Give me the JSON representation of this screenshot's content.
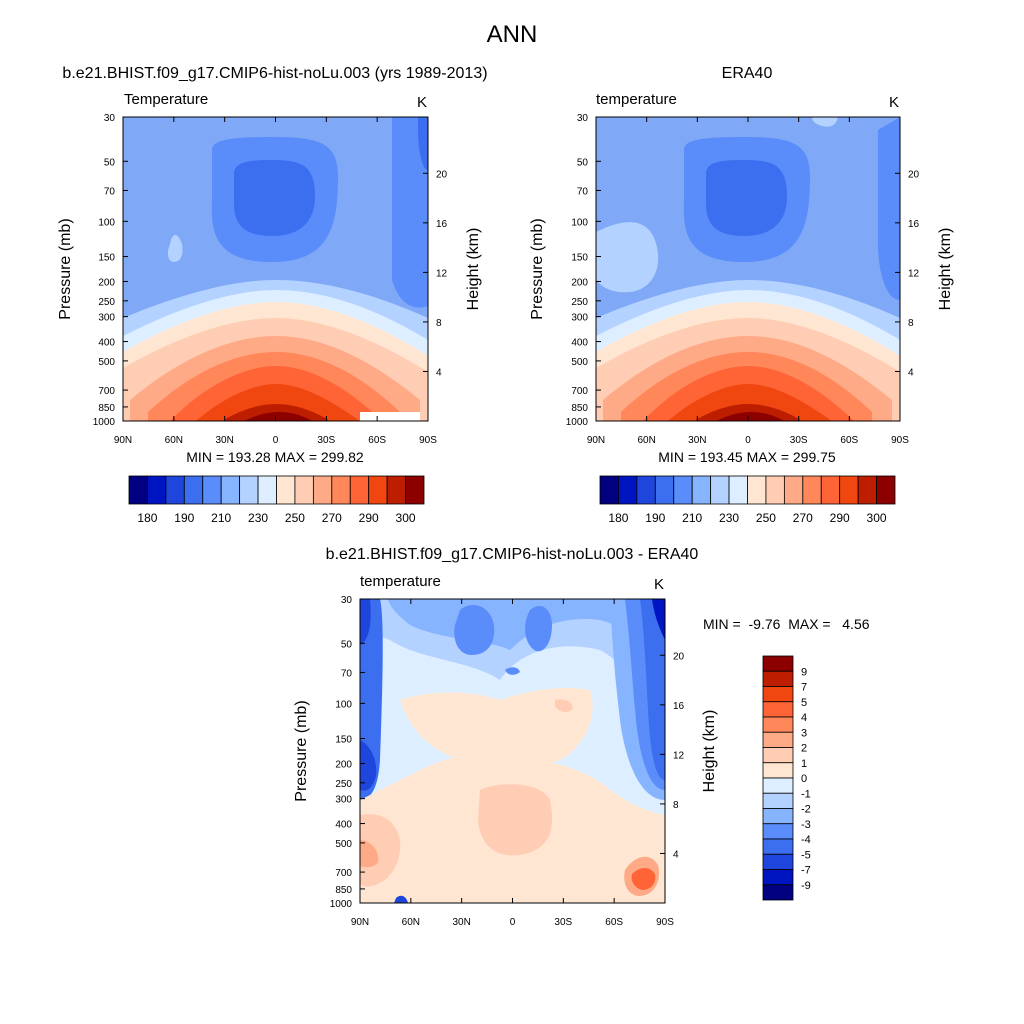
{
  "page": {
    "title": "ANN"
  },
  "colors": {
    "abs_levels": [
      "#000080",
      "#0015c2",
      "#1e46dc",
      "#3c6ef0",
      "#5a8cfa",
      "#87b4ff",
      "#b4d2ff",
      "#dceeff",
      "#ffe6d2",
      "#ffcdb4",
      "#ffaa87",
      "#ff875a",
      "#ff6437",
      "#f0460f",
      "#be1e00",
      "#8c0000"
    ],
    "diff_levels": [
      "#000080",
      "#0015c2",
      "#1e46dc",
      "#3c6ef0",
      "#5a8cfa",
      "#87b4ff",
      "#b4d2ff",
      "#dceeff",
      "#ffe6d2",
      "#ffcdb4",
      "#ffaa87",
      "#ff875a",
      "#ff6437",
      "#f0460f",
      "#be1e00",
      "#8c0000"
    ]
  },
  "chart_data": [
    {
      "type": "heatmap",
      "title": "b.e21.BHIST.f09_g17.CMIP6-hist-noLu.003 (yrs 1989-2013)",
      "subtitle_left": "Temperature",
      "subtitle_right": "K",
      "xlabel": "",
      "ylabel": "Pressure (mb)",
      "ylabel_right": "Height (km)",
      "x_ticks": [
        "90N",
        "60N",
        "30N",
        "0",
        "30S",
        "60S",
        "90S"
      ],
      "y_ticks": [
        "30",
        "50",
        "70",
        "100",
        "150",
        "200",
        "250",
        "300",
        "400",
        "500",
        "700",
        "850",
        "1000"
      ],
      "y_ticks_right": [
        "20",
        "16",
        "12",
        "8",
        "4"
      ],
      "xlim": [
        90,
        -90
      ],
      "ylim_mb": [
        1000,
        30
      ],
      "stats": "MIN = 193.28  MAX = 299.82",
      "min": 193.28,
      "max": 299.82,
      "colorbar_labels": [
        "180",
        "190",
        "210",
        "230",
        "250",
        "270",
        "290",
        "300"
      ],
      "colorbar_levels": 16
    },
    {
      "type": "heatmap",
      "title": "ERA40",
      "subtitle_left": "temperature",
      "subtitle_right": "K",
      "xlabel": "",
      "ylabel": "Pressure (mb)",
      "ylabel_right": "Height (km)",
      "x_ticks": [
        "90N",
        "60N",
        "30N",
        "0",
        "30S",
        "60S",
        "90S"
      ],
      "y_ticks": [
        "30",
        "50",
        "70",
        "100",
        "150",
        "200",
        "250",
        "300",
        "400",
        "500",
        "700",
        "850",
        "1000"
      ],
      "y_ticks_right": [
        "20",
        "16",
        "12",
        "8",
        "4"
      ],
      "xlim": [
        90,
        -90
      ],
      "ylim_mb": [
        1000,
        30
      ],
      "stats": "MIN = 193.45  MAX = 299.75",
      "min": 193.45,
      "max": 299.75,
      "colorbar_labels": [
        "180",
        "190",
        "210",
        "230",
        "250",
        "270",
        "290",
        "300"
      ],
      "colorbar_levels": 16
    },
    {
      "type": "heatmap",
      "title": "b.e21.BHIST.f09_g17.CMIP6-hist-noLu.003 - ERA40",
      "subtitle_left": "temperature",
      "subtitle_right": "K",
      "xlabel": "",
      "ylabel": "Pressure (mb)",
      "ylabel_right": "Height (km)",
      "x_ticks": [
        "90N",
        "60N",
        "30N",
        "0",
        "30S",
        "60S",
        "90S"
      ],
      "y_ticks": [
        "30",
        "50",
        "70",
        "100",
        "150",
        "200",
        "250",
        "300",
        "400",
        "500",
        "700",
        "850",
        "1000"
      ],
      "y_ticks_right": [
        "20",
        "16",
        "12",
        "8",
        "4"
      ],
      "xlim": [
        90,
        -90
      ],
      "ylim_mb": [
        1000,
        30
      ],
      "stats": "MIN =  -9.76  MAX =   4.56",
      "min": -9.76,
      "max": 4.56,
      "colorbar_labels": [
        "9",
        "7",
        "5",
        "4",
        "3",
        "2",
        "1",
        "0",
        "-1",
        "-2",
        "-3",
        "-4",
        "-5",
        "-7",
        "-9"
      ],
      "colorbar_levels": 16
    }
  ]
}
